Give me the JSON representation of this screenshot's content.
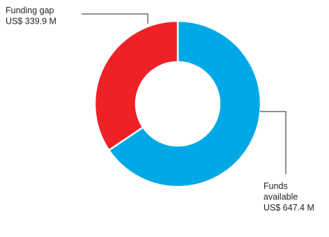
{
  "chart_data": {
    "type": "pie",
    "variant": "donut",
    "slices": [
      {
        "name": "Funds available",
        "label_lines": [
          "Funds",
          "available",
          "US$ 647.4 M"
        ],
        "value": 647.4,
        "unit": "US$ M",
        "color": "#00a9e6"
      },
      {
        "name": "Funding gap",
        "label_lines": [
          "Funding gap",
          "US$ 339.9 M"
        ],
        "value": 339.9,
        "unit": "US$ M",
        "color": "#ee2127"
      }
    ],
    "legend": "none",
    "labels": "outside with leader lines"
  }
}
